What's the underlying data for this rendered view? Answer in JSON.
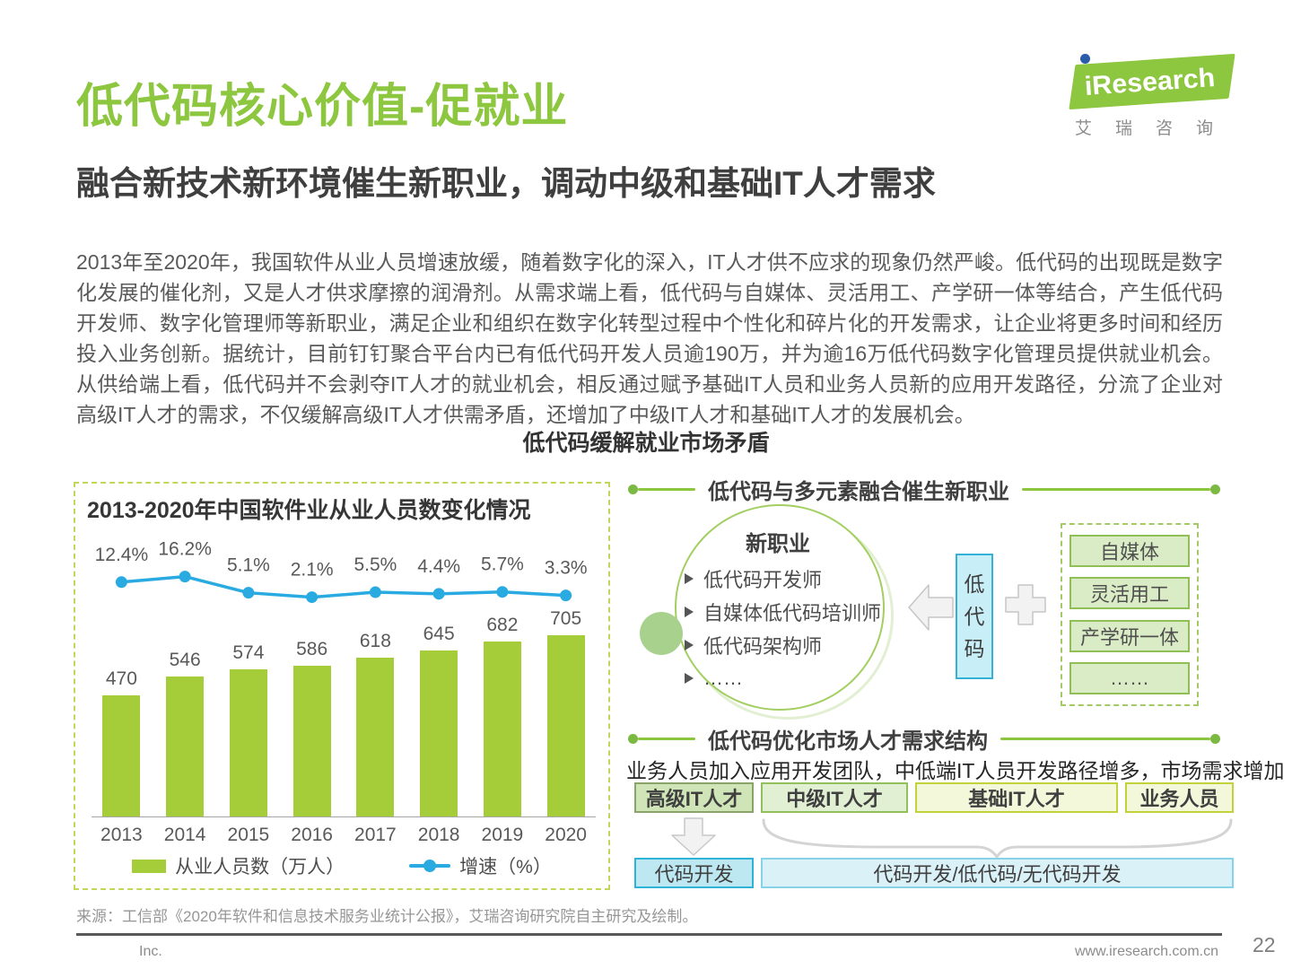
{
  "page": {
    "title": "低代码核心价值-促就业",
    "subtitle": "融合新技术新环境催生新职业，调动中级和基础IT人才需求",
    "paragraph": "2013年至2020年，我国软件从业人员增速放缓，随着数字化的深入，IT人才供不应求的现象仍然严峻。低代码的出现既是数字化发展的催化剂，又是人才供求摩擦的润滑剂。从需求端上看，低代码与自媒体、灵活用工、产学研一体等结合，产生低代码开发师、数字化管理师等新职业，满足企业和组织在数字化转型过程中个性化和碎片化的开发需求，让企业将更多时间和经历投入业务创新。据统计，目前钉钉聚合平台内已有低代码开发人员逾190万，并为逾16万低代码数字化管理员提供就业机会。从供给端上看，低代码并不会剥夺IT人才的就业机会，相反通过赋予基础IT人员和业务人员新的应用开发路径，分流了企业对高级IT人才的需求，不仅缓解高级IT人才供需矛盾，还增加了中级IT人才和基础IT人才的发展机会。",
    "figure_title": "低代码缓解就业市场矛盾",
    "source": "来源：工信部《2020年软件和信息技术服务业统计公报》，艾瑞咨询研究院自主研究及绘制。",
    "footer": {
      "company": "Inc.",
      "website": "www.iresearch.com.cn",
      "page_number": "22"
    },
    "logo": {
      "i": "i",
      "brand": "Research",
      "caption": "艾瑞咨询"
    }
  },
  "chart_data": {
    "type": "bar+line",
    "title": "2013-2020年中国软件业从业人员数变化情况",
    "categories": [
      "2013",
      "2014",
      "2015",
      "2016",
      "2017",
      "2018",
      "2019",
      "2020"
    ],
    "series": [
      {
        "name": "从业人员数（万人）",
        "type": "bar",
        "values": [
          470,
          546,
          574,
          586,
          618,
          645,
          682,
          705
        ],
        "color": "#a5cd39"
      },
      {
        "name": "增速（%）",
        "type": "line",
        "values": [
          12.4,
          16.2,
          5.1,
          2.1,
          5.5,
          4.4,
          5.7,
          3.3
        ],
        "unit": "%",
        "color": "#29abe2"
      }
    ],
    "legend_position": "bottom",
    "grid": false,
    "value_labels": true
  },
  "diagram": {
    "top": {
      "header": "低代码与多元素融合催生新职业",
      "circle_title": "新职业",
      "circle_items": [
        "低代码开发师",
        "自媒体低代码培训师",
        "低代码架构师",
        "……"
      ],
      "center_box": "低代码",
      "right_items": [
        "自媒体",
        "灵活用工",
        "产学研一体",
        "……"
      ]
    },
    "bottom": {
      "header": "低代码优化市场人才需求结构",
      "description": "业务人员加入应用开发团队，中低端IT人员开发路径增多，市场需求增加",
      "talent_boxes": [
        "高级IT人才",
        "中级IT人才",
        "基础IT人才",
        "业务人员"
      ],
      "result_boxes": [
        "代码开发",
        "代码开发/低代码/无代码开发"
      ]
    }
  },
  "colors": {
    "brand_green": "#8dc63f",
    "bar_green": "#a5cd39",
    "line_cyan": "#29abe2",
    "logo_dot_blue": "#2a5caa"
  }
}
